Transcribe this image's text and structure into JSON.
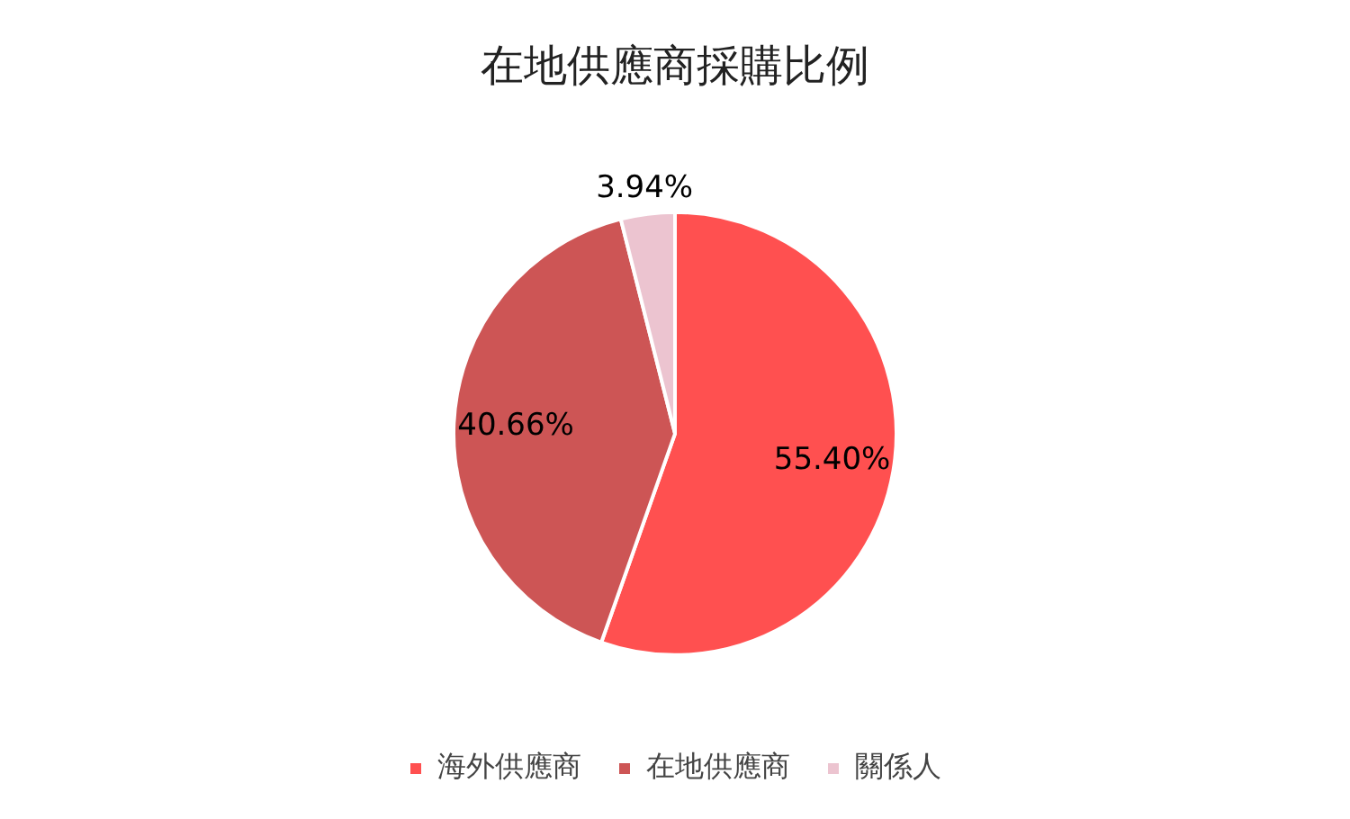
{
  "chart_data": {
    "type": "pie",
    "title": "在地供應商採購比例",
    "categories": [
      "海外供應商",
      "在地供應商",
      "關係人"
    ],
    "values": [
      55.4,
      40.66,
      3.94
    ],
    "colors": [
      "#ff5050",
      "#cd5555",
      "#ecc4d0"
    ],
    "value_labels": [
      "55.40%",
      "40.66%",
      "3.94%"
    ],
    "legend": "bottom"
  }
}
